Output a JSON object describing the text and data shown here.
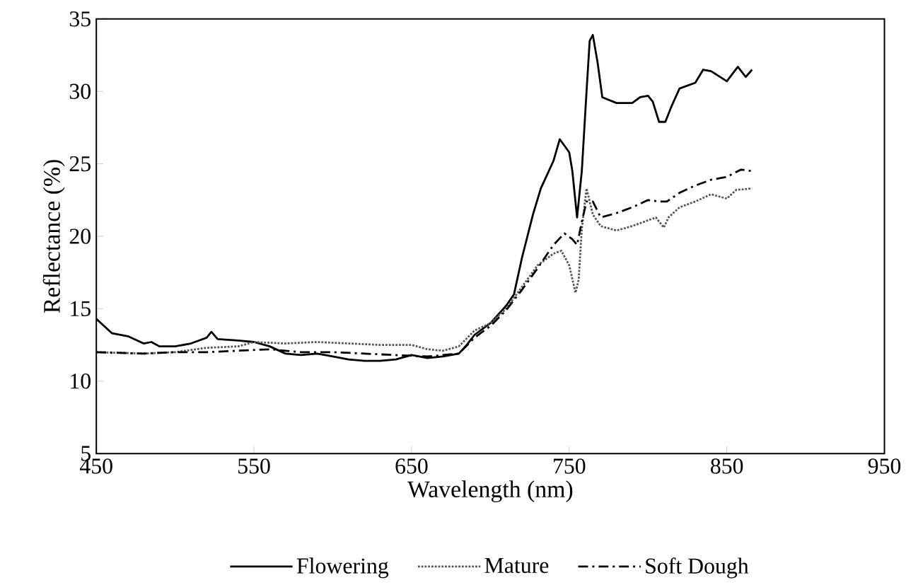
{
  "chart_data": {
    "type": "line",
    "xlabel": "Wavelength (nm)",
    "ylabel": "Reflectance (%)",
    "xlim": [
      450,
      950
    ],
    "ylim": [
      5,
      35
    ],
    "xticks": [
      450,
      550,
      650,
      750,
      850,
      950
    ],
    "yticks": [
      5,
      10,
      15,
      20,
      25,
      30,
      35
    ],
    "legend": "bottom",
    "series": [
      {
        "name": "Flowering",
        "color": "#000000",
        "line_style": "solid",
        "x": [
          450,
          460,
          470,
          480,
          485,
          490,
          500,
          510,
          515,
          520,
          523,
          527,
          540,
          550,
          560,
          570,
          580,
          590,
          600,
          610,
          620,
          630,
          640,
          650,
          660,
          670,
          680,
          685,
          690,
          700,
          710,
          715,
          720,
          727,
          732,
          740,
          744,
          750,
          752,
          755,
          758,
          761,
          763,
          765,
          768,
          771,
          780,
          790,
          795,
          800,
          803,
          807,
          811,
          815,
          820,
          830,
          835,
          840,
          850,
          857,
          862,
          866
        ],
        "values": [
          14.3,
          13.3,
          13.1,
          12.6,
          12.7,
          12.4,
          12.4,
          12.6,
          12.8,
          13.0,
          13.4,
          12.9,
          12.8,
          12.7,
          12.4,
          11.9,
          11.8,
          11.9,
          11.7,
          11.5,
          11.4,
          11.4,
          11.5,
          11.8,
          11.6,
          11.7,
          11.9,
          12.5,
          13.2,
          14.0,
          15.2,
          16.0,
          18.5,
          21.5,
          23.3,
          25.2,
          26.7,
          25.8,
          24.5,
          21.3,
          24.5,
          30.0,
          33.5,
          33.9,
          32.0,
          29.6,
          29.2,
          29.2,
          29.6,
          29.7,
          29.3,
          27.9,
          27.9,
          29.0,
          30.2,
          30.6,
          31.5,
          31.4,
          30.7,
          31.7,
          31.0,
          31.5
        ]
      },
      {
        "name": "Mature",
        "color": "#555555",
        "line_style": "dotted",
        "x": [
          450,
          480,
          500,
          520,
          540,
          550,
          570,
          590,
          610,
          630,
          650,
          660,
          670,
          680,
          690,
          700,
          710,
          720,
          730,
          740,
          745,
          750,
          754,
          756,
          758,
          761,
          765,
          770,
          780,
          790,
          800,
          805,
          810,
          813,
          820,
          830,
          840,
          850,
          856,
          866
        ],
        "values": [
          12.0,
          11.9,
          12.0,
          12.3,
          12.4,
          12.7,
          12.6,
          12.7,
          12.6,
          12.5,
          12.5,
          12.2,
          12.1,
          12.4,
          13.5,
          14.0,
          15.0,
          16.5,
          18.0,
          18.8,
          19.0,
          18.0,
          16.1,
          17.0,
          20.5,
          23.3,
          21.5,
          20.7,
          20.4,
          20.7,
          21.1,
          21.3,
          20.6,
          21.3,
          22.0,
          22.4,
          22.9,
          22.6,
          23.2,
          23.3
        ]
      },
      {
        "name": "Soft Dough",
        "color": "#000000",
        "line_style": "dashdot",
        "x": [
          450,
          480,
          500,
          520,
          540,
          560,
          580,
          600,
          620,
          640,
          660,
          680,
          690,
          700,
          710,
          720,
          730,
          740,
          747,
          752,
          755,
          758,
          761,
          765,
          770,
          780,
          790,
          800,
          807,
          812,
          820,
          830,
          840,
          850,
          859,
          866
        ],
        "values": [
          12.0,
          11.9,
          12.0,
          12.0,
          12.1,
          12.2,
          12.0,
          12.0,
          11.9,
          11.8,
          11.7,
          11.9,
          13.0,
          13.8,
          14.9,
          16.3,
          17.8,
          19.4,
          20.2,
          19.8,
          19.4,
          21.0,
          22.4,
          22.4,
          21.3,
          21.6,
          22.0,
          22.5,
          22.4,
          22.4,
          23.0,
          23.5,
          23.9,
          24.1,
          24.6,
          24.5
        ]
      }
    ]
  }
}
